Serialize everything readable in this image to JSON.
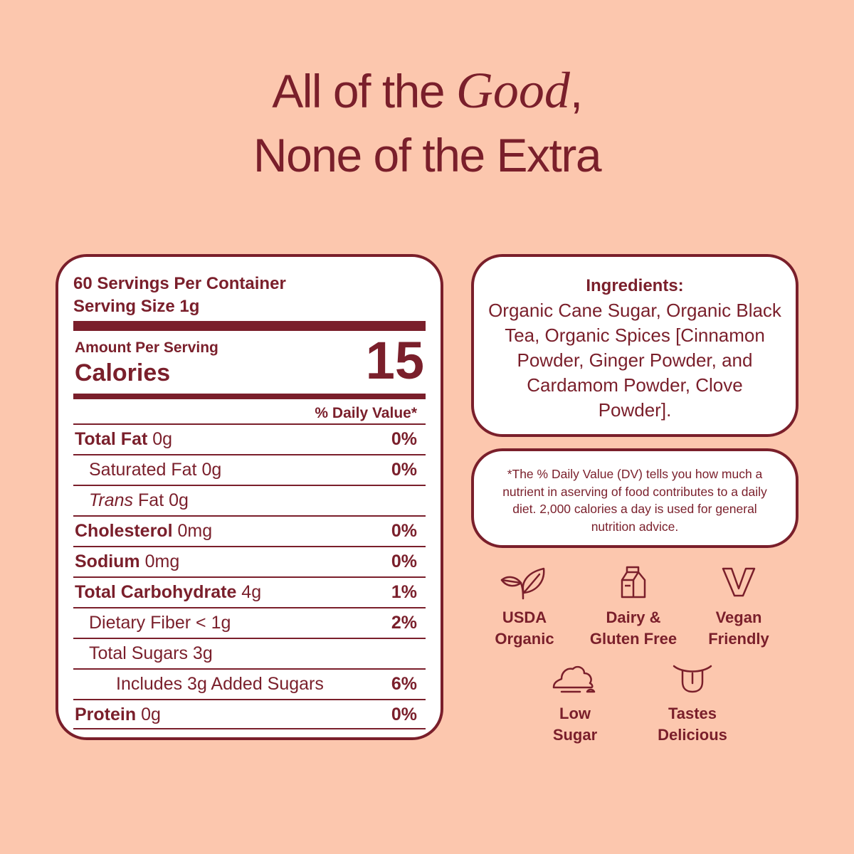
{
  "headline": {
    "line1_prefix": "All of the ",
    "line1_emphasis": "Good",
    "line1_suffix": ",",
    "line2": "None of the Extra"
  },
  "nutrition": {
    "servings_per_container": "60 Servings Per Container",
    "serving_size": "Serving Size 1g",
    "amount_per_serving": "Amount Per Serving",
    "calories_label": "Calories",
    "calories_value": "15",
    "daily_value_header": "% Daily Value*",
    "rows": [
      {
        "name": "Total Fat",
        "amount": "0g",
        "pct": "0%"
      },
      {
        "name": "Saturated Fat",
        "amount": "0g",
        "pct": "0%"
      },
      {
        "name": "Trans",
        "amount": "Fat 0g",
        "pct": ""
      },
      {
        "name": "Cholesterol",
        "amount": "0mg",
        "pct": "0%"
      },
      {
        "name": "Sodium",
        "amount": "0mg",
        "pct": "0%"
      },
      {
        "name": "Total Carbohydrate",
        "amount": "4g",
        "pct": "1%"
      },
      {
        "name": "Dietary Fiber",
        "amount": "< 1g",
        "pct": "2%"
      },
      {
        "name": "Total Sugars",
        "amount": "3g",
        "pct": ""
      },
      {
        "name": "Includes 3g Added Sugars",
        "amount": "",
        "pct": "6%"
      },
      {
        "name": "Protein",
        "amount": "0g",
        "pct": "0%"
      }
    ]
  },
  "ingredients": {
    "title": "Ingredients:",
    "text": "Organic Cane Sugar, Organic Black Tea, Organic Spices [Cinnamon Powder, Ginger Powder, and Cardamom Powder, Clove Powder]."
  },
  "dv_note": "*The % Daily Value (DV) tells you how much a nutrient in aserving of food contributes to a daily diet. 2,000 calories a day is used for general nutrition advice.",
  "badges": [
    {
      "icon": "leaf-icon",
      "line1": "USDA",
      "line2": "Organic"
    },
    {
      "icon": "milk-carton-icon",
      "line1": "Dairy &",
      "line2": "Gluten Free"
    },
    {
      "icon": "vegan-v-icon",
      "line1": "Vegan",
      "line2": "Friendly"
    },
    {
      "icon": "sugar-pile-icon",
      "line1": "Low",
      "line2": "Sugar"
    },
    {
      "icon": "tongue-icon",
      "line1": "Tastes",
      "line2": "Delicious"
    }
  ],
  "colors": {
    "background": "#fcc7ae",
    "accent": "#7a1f2b",
    "card": "#ffffff"
  }
}
